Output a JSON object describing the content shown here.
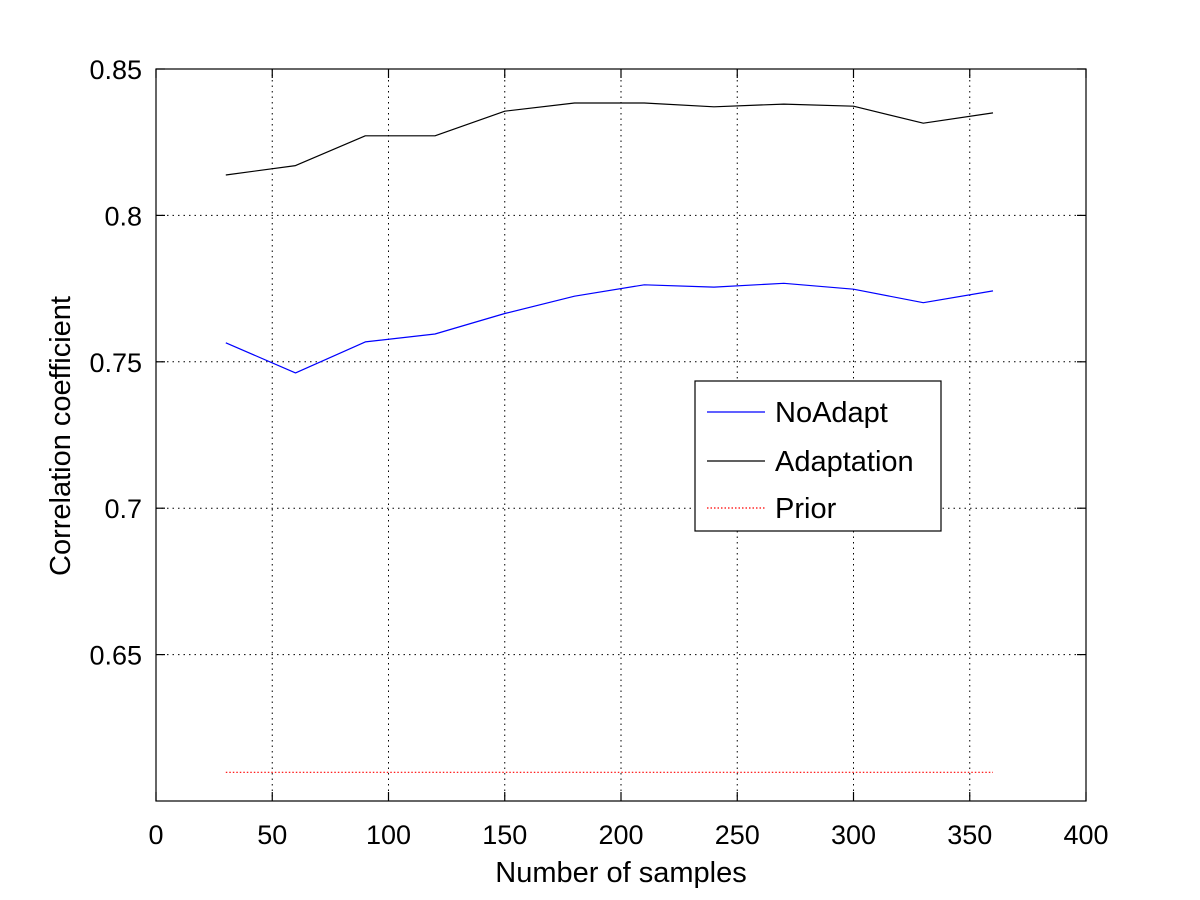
{
  "chart_data": {
    "type": "line",
    "title": "",
    "xlabel": "Number of samples",
    "ylabel": "Correlation coefficient",
    "xlim": [
      0,
      400
    ],
    "ylim": [
      0.6,
      0.85
    ],
    "xticks": [
      0,
      50,
      100,
      150,
      200,
      250,
      300,
      350,
      400
    ],
    "yticks": [
      0.65,
      0.7,
      0.75,
      0.8,
      0.85
    ],
    "xtick_labels": [
      "0",
      "50",
      "100",
      "150",
      "200",
      "250",
      "300",
      "350",
      "400"
    ],
    "ytick_labels": [
      "0.65",
      "0.7",
      "0.75",
      "0.8",
      "0.85"
    ],
    "grid": true,
    "legend_position": "center-right",
    "x": [
      30,
      60,
      90,
      120,
      150,
      180,
      210,
      240,
      270,
      300,
      330,
      360
    ],
    "series": [
      {
        "name": "NoAdapt",
        "color": "#0000ff",
        "values": [
          0.7565,
          0.7462,
          0.7568,
          0.7595,
          0.7665,
          0.7724,
          0.7763,
          0.7755,
          0.7768,
          0.7748,
          0.7702,
          0.7742
        ]
      },
      {
        "name": "Adaptation",
        "color": "#000000",
        "values": [
          0.8138,
          0.817,
          0.8272,
          0.8272,
          0.8356,
          0.8384,
          0.8384,
          0.8371,
          0.838,
          0.8373,
          0.8315,
          0.835
        ]
      },
      {
        "name": "Prior",
        "color": "#ff0000",
        "style": "dotted",
        "values": [
          0.6098,
          0.6098,
          0.6098,
          0.6098,
          0.6098,
          0.6098,
          0.6098,
          0.6098,
          0.6098,
          0.6098,
          0.6098,
          0.6098
        ]
      }
    ]
  }
}
